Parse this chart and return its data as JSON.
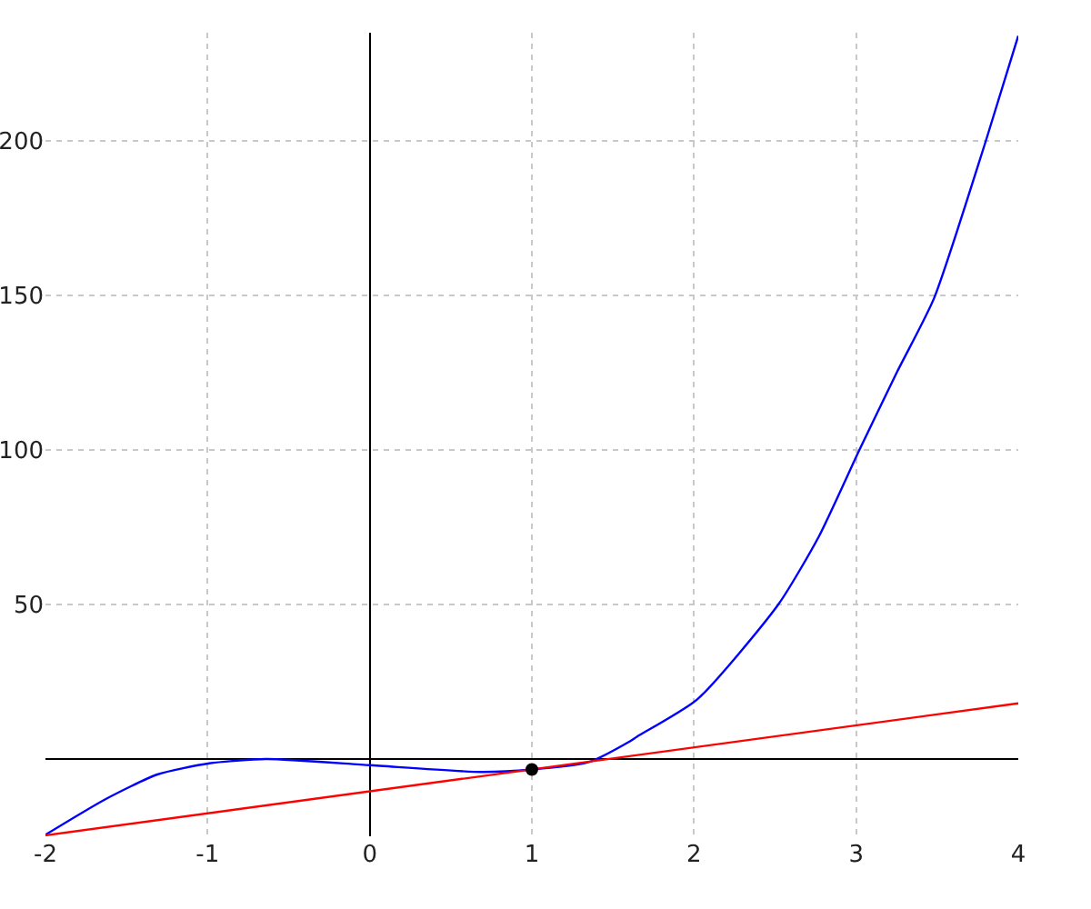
{
  "chart_data": {
    "type": "line",
    "xlim": [
      -2,
      4
    ],
    "ylim": [
      -25,
      235
    ],
    "xticks": [
      -2,
      -1,
      0,
      1,
      2,
      3,
      4
    ],
    "yticks": [
      50,
      100,
      150,
      200
    ],
    "grid": true,
    "series": [
      {
        "color": "#0000ff",
        "x": [
          -2,
          -1.63,
          -1.31,
          -0.99,
          -0.64,
          0,
          0.69,
          1,
          1.35,
          1.6,
          1.65,
          2.02,
          2.52,
          2.77,
          3.02,
          3.25,
          3.48,
          3.8,
          4
        ],
        "values": [
          -24.5,
          -13,
          -5,
          -1.4,
          0,
          -2,
          -4.2,
          -3.4,
          -1,
          5.6,
          7.3,
          19.3,
          50,
          72,
          100,
          125,
          149,
          200,
          234
        ]
      },
      {
        "color": "#ff0000",
        "x": [
          -2,
          4
        ],
        "values": [
          -24.7,
          18
        ]
      },
      {
        "type": "scatter",
        "color": "#000000",
        "x": [
          1
        ],
        "values": [
          -3.4
        ]
      }
    ]
  }
}
